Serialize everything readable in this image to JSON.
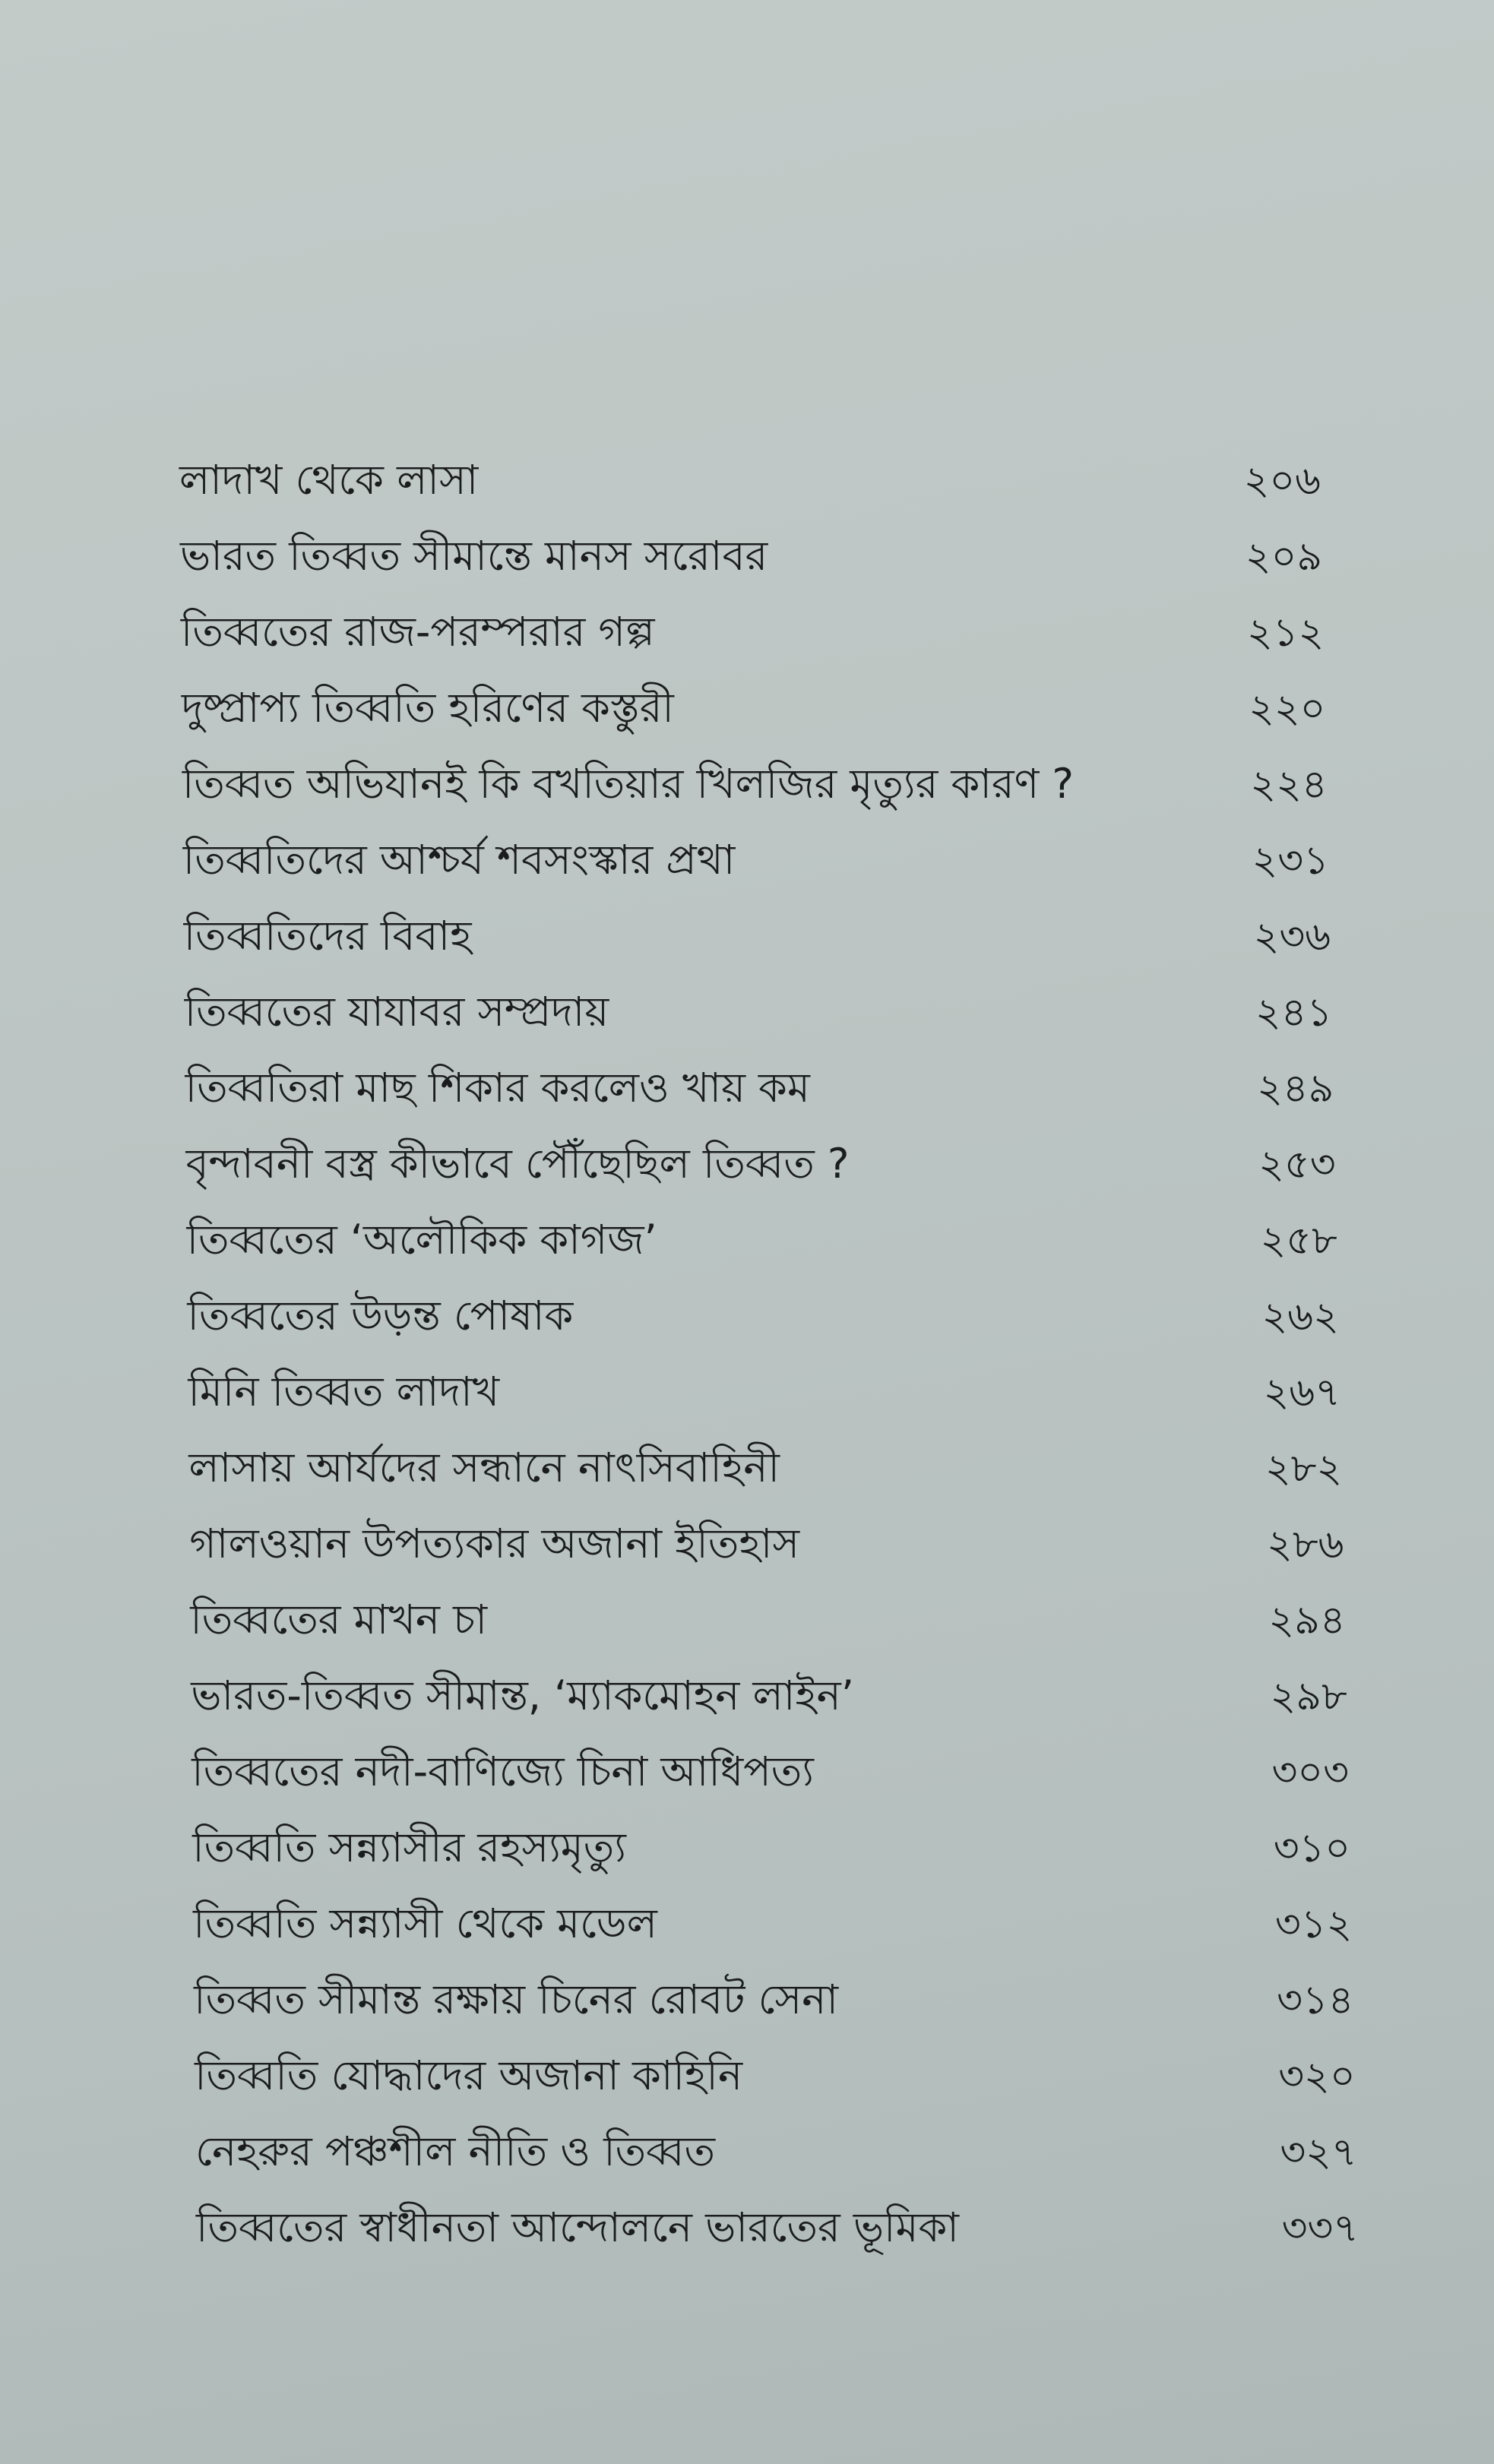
{
  "toc": {
    "entries": [
      {
        "title": "লাদাখ থেকে লাসা",
        "page": "২০৬"
      },
      {
        "title": "ভারত তিব্বত সীমান্তে মানস সরোবর",
        "page": "২০৯"
      },
      {
        "title": "তিব্বতের রাজ-পরম্পরার গল্প",
        "page": "২১২"
      },
      {
        "title": "দুষ্প্রাপ্য তিব্বতি হরিণের কস্তুরী",
        "page": "২২০"
      },
      {
        "title": "তিব্বত অভিযানই কি বখতিয়ার খিলজির মৃত্যুর কারণ ?",
        "page": "২২৪"
      },
      {
        "title": "তিব্বতিদের আশ্চর্য শবসংস্কার প্রথা",
        "page": "২৩১"
      },
      {
        "title": "তিব্বতিদের বিবাহ",
        "page": "২৩৬"
      },
      {
        "title": "তিব্বতের যাযাবর সম্প্রদায়",
        "page": "২৪১"
      },
      {
        "title": "তিব্বতিরা মাছ শিকার করলেও খায় কম",
        "page": "২৪৯"
      },
      {
        "title": "বৃন্দাবনী বস্ত্র কীভাবে পৌঁছেছিল তিব্বত ?",
        "page": "২৫৩"
      },
      {
        "title": "তিব্বতের ‘অলৌকিক কাগজ’",
        "page": "২৫৮"
      },
      {
        "title": "তিব্বতের উড়ন্ত পোষাক",
        "page": "২৬২"
      },
      {
        "title": "মিনি তিব্বত লাদাখ",
        "page": "২৬৭"
      },
      {
        "title": "লাসায় আর্যদের সন্ধানে নাৎসিবাহিনী",
        "page": "২৮২"
      },
      {
        "title": "গালওয়ান উপত্যকার অজানা ইতিহাস",
        "page": "২৮৬"
      },
      {
        "title": "তিব্বতের মাখন চা",
        "page": "২৯৪"
      },
      {
        "title": "ভারত-তিব্বত সীমান্ত, ‘ম্যাকমোহন লাইন’",
        "page": "২৯৮"
      },
      {
        "title": "তিব্বতের নদী-বাণিজ্যে চিনা আধিপত্য",
        "page": "৩০৩"
      },
      {
        "title": "তিব্বতি সন্ন্যাসীর রহস্যমৃত্যু",
        "page": "৩১০"
      },
      {
        "title": "তিব্বতি সন্ন্যাসী থেকে মডেল",
        "page": "৩১২"
      },
      {
        "title": "তিব্বত সীমান্ত রক্ষায় চিনের রোবট সেনা",
        "page": "৩১৪"
      },
      {
        "title": "তিব্বতি যোদ্ধাদের অজানা কাহিনি",
        "page": "৩২০"
      },
      {
        "title": "নেহরুর পঞ্চশীল নীতি ও তিব্বত",
        "page": "৩২৭"
      },
      {
        "title": "তিব্বতের স্বাধীনতা আন্দোলনে ভারতের ভূমিকা",
        "page": "৩৩৭"
      }
    ]
  }
}
